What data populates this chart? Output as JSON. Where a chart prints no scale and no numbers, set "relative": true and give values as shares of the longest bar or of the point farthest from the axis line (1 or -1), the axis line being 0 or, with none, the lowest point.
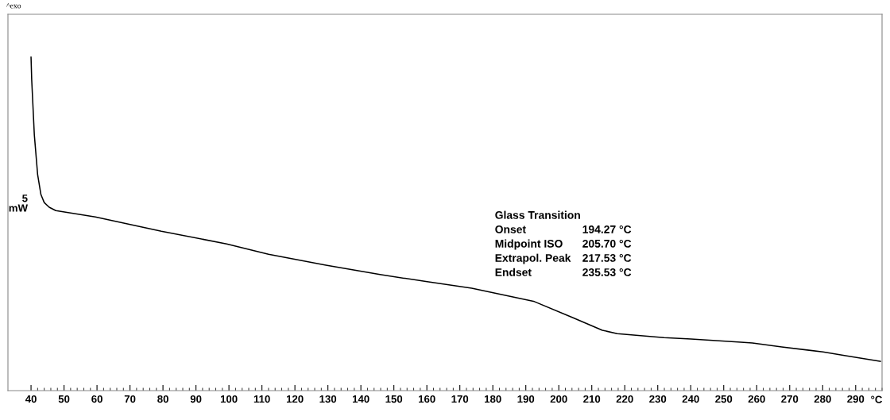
{
  "chart_data": {
    "type": "line",
    "relative": true,
    "xlabel": "°C",
    "ylabel": "5\nmW",
    "x": [
      40,
      40.2,
      41,
      42,
      43,
      44,
      45.5,
      47.5,
      59.5,
      79.5,
      99.3,
      112,
      129.4,
      145.8,
      160.5,
      173.6,
      192.6,
      204.2,
      213.2,
      217.7,
      231.9,
      240.1,
      254.3,
      258.7,
      267.6,
      280.1,
      287.3,
      297.5
    ],
    "series": [
      {
        "color": "#000000",
        "values": [
          1.0,
          0.933,
          0.767,
          0.648,
          0.588,
          0.564,
          0.55,
          0.54,
          0.521,
          0.478,
          0.44,
          0.409,
          0.376,
          0.348,
          0.326,
          0.307,
          0.267,
          0.219,
          0.181,
          0.171,
          0.159,
          0.155,
          0.146,
          0.143,
          0.131,
          0.116,
          0.104,
          0.088
        ]
      }
    ],
    "xlim": [
      33,
      298
    ],
    "xticks": [
      40,
      50,
      60,
      70,
      80,
      90,
      100,
      110,
      120,
      130,
      140,
      150,
      160,
      170,
      180,
      190,
      200,
      210,
      220,
      230,
      240,
      250,
      260,
      270,
      280,
      290
    ],
    "annotations": [
      "^exo",
      "Glass Transition",
      "Onset",
      "194.27 °C",
      "Midpoint ISO",
      "205.70 °C",
      "Extrapol. Peak",
      "217.53 °C",
      "Endset",
      "235.53 °C"
    ],
    "grid": false,
    "legend": false,
    "marker": "none",
    "line_style": "solid"
  }
}
